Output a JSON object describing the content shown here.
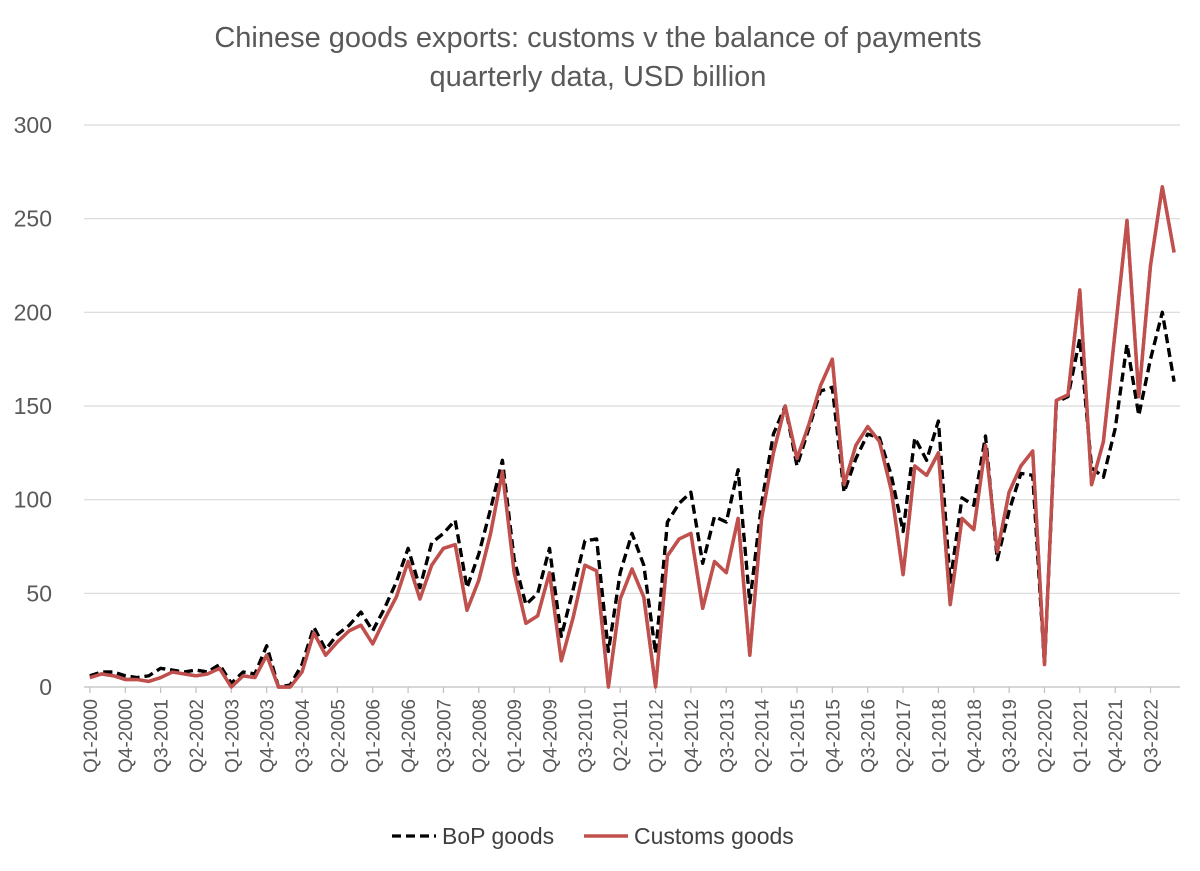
{
  "chart_data": {
    "type": "line",
    "title": "Chinese goods exports: customs v the balance of payments",
    "subtitle": "quarterly data, USD billion",
    "ylim": [
      0,
      300
    ],
    "y_ticks": [
      0,
      50,
      100,
      150,
      200,
      250,
      300
    ],
    "grid": true,
    "legend": "bottom",
    "x_tick_labels": [
      "Q1-2000",
      "Q4-2000",
      "Q3-2001",
      "Q2-2002",
      "Q1-2003",
      "Q4-2003",
      "Q3-2004",
      "Q2-2005",
      "Q1-2006",
      "Q4-2006",
      "Q3-2007",
      "Q2-2008",
      "Q1-2009",
      "Q4-2009",
      "Q3-2010",
      "Q2-2011",
      "Q1-2012",
      "Q4-2012",
      "Q3-2013",
      "Q2-2014",
      "Q1-2015",
      "Q4-2015",
      "Q3-2016",
      "Q2-2017",
      "Q1-2018",
      "Q4-2018",
      "Q3-2019",
      "Q2-2020",
      "Q1-2021",
      "Q4-2021",
      "Q3-2022"
    ],
    "series": [
      {
        "name": "BoP goods",
        "color": "#000000",
        "style": "dashed",
        "values": [
          6,
          8,
          8,
          6,
          5,
          6,
          10,
          9,
          8,
          9,
          8,
          12,
          2,
          8,
          7,
          22,
          -1,
          1,
          12,
          32,
          20,
          28,
          33,
          40,
          30,
          42,
          56,
          74,
          53,
          77,
          82,
          89,
          53,
          71,
          95,
          121,
          68,
          44,
          50,
          74,
          27,
          52,
          78,
          79,
          19,
          61,
          82,
          65,
          18,
          88,
          98,
          104,
          66,
          91,
          88,
          116,
          45,
          98,
          135,
          150,
          118,
          138,
          158,
          160,
          104,
          122,
          135,
          133,
          113,
          83,
          133,
          121,
          142,
          56,
          101,
          97,
          134,
          68,
          94,
          114,
          113,
          12,
          152,
          155,
          186,
          117,
          112,
          138,
          183,
          145,
          175,
          200,
          163
        ]
      },
      {
        "name": "Customs goods",
        "color": "#c0504d",
        "style": "solid",
        "values": [
          5,
          7,
          6,
          4,
          4,
          3,
          5,
          8,
          7,
          6,
          7,
          10,
          0,
          6,
          5,
          17,
          -5,
          -3,
          8,
          29,
          17,
          24,
          30,
          33,
          23,
          36,
          48,
          67,
          47,
          65,
          74,
          76,
          41,
          57,
          82,
          115,
          61,
          34,
          38,
          61,
          14,
          37,
          65,
          62,
          0,
          47,
          63,
          48,
          0,
          70,
          79,
          82,
          42,
          67,
          61,
          90,
          17,
          90,
          125,
          150,
          122,
          140,
          161,
          175,
          108,
          129,
          139,
          131,
          105,
          60,
          118,
          113,
          125,
          44,
          90,
          84,
          129,
          72,
          104,
          118,
          126,
          12,
          153,
          156,
          212,
          108,
          131,
          190,
          249,
          155,
          225,
          267,
          232
        ]
      }
    ]
  }
}
